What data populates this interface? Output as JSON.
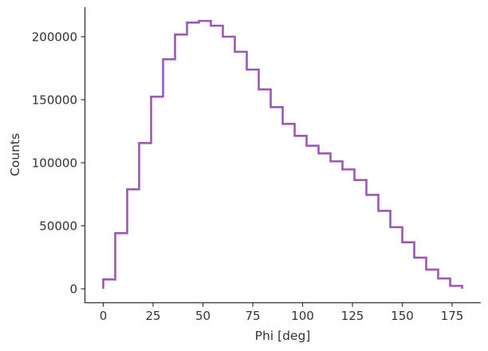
{
  "chart_data": {
    "type": "line",
    "style": "step-histogram",
    "title": "",
    "xlabel": "Phi [deg]",
    "ylabel": "Counts",
    "xlim": [
      -9,
      189
    ],
    "ylim": [
      -10000,
      224000
    ],
    "xticks": [
      0,
      25,
      50,
      75,
      100,
      125,
      150,
      175
    ],
    "yticks": [
      0,
      50000,
      100000,
      150000,
      200000
    ],
    "grid": false,
    "legend": null,
    "line_color": "#9b59b6",
    "bin_edges": [
      0,
      6,
      12,
      18,
      24,
      30,
      36,
      42,
      48,
      54,
      60,
      66,
      72,
      78,
      84,
      90,
      96,
      102,
      108,
      114,
      120,
      126,
      132,
      138,
      144,
      150,
      156,
      162,
      168,
      174,
      180
    ],
    "series": [
      {
        "name": "Phi",
        "values": [
          7400,
          44100,
          78900,
          115600,
          152400,
          182100,
          201700,
          211200,
          212500,
          208700,
          200000,
          188000,
          173900,
          158200,
          144100,
          130800,
          121300,
          113500,
          107400,
          101100,
          94700,
          86300,
          74500,
          61800,
          48900,
          36900,
          24700,
          15200,
          8200,
          2300
        ]
      }
    ]
  }
}
